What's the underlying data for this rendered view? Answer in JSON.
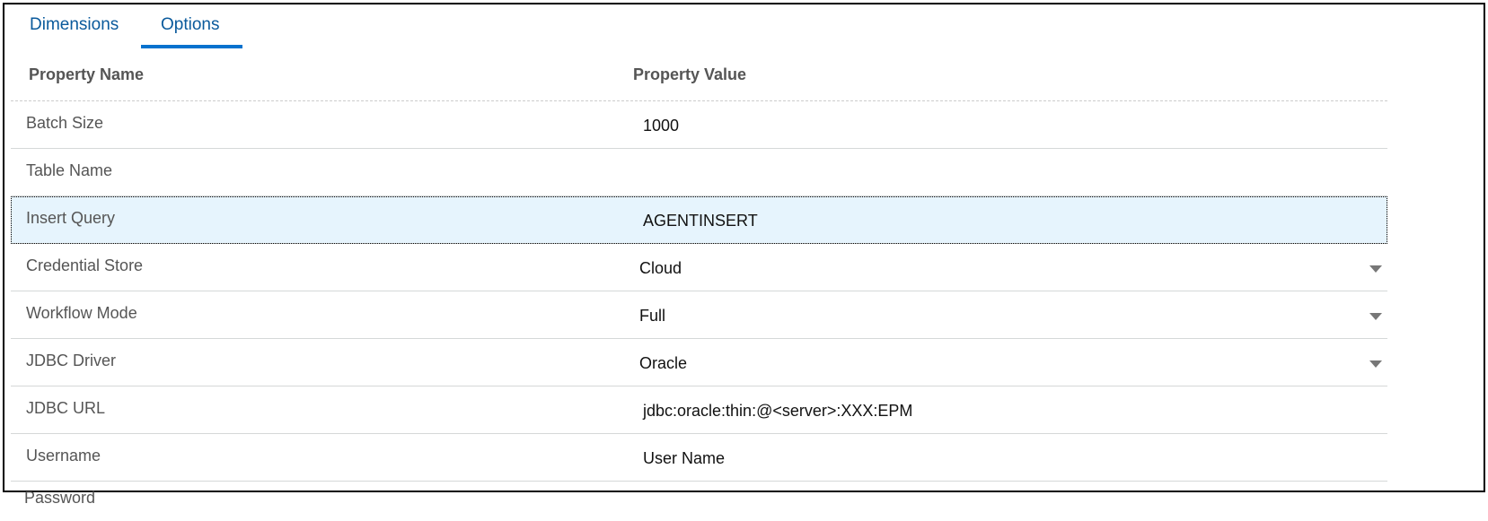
{
  "tabs": [
    {
      "label": "Dimensions",
      "active": false
    },
    {
      "label": "Options",
      "active": true
    }
  ],
  "accent_color": "#0572ce",
  "table": {
    "headers": {
      "name": "Property Name",
      "value": "Property Value"
    },
    "rows": [
      {
        "name": "Batch Size",
        "value": "1000"
      },
      {
        "name": "Table Name",
        "value": ""
      },
      {
        "name": "Insert Query",
        "value": "AGENTINSERT",
        "selected": true
      },
      {
        "name": "Credential Store",
        "value": "Cloud",
        "dropdown": true
      },
      {
        "name": "Workflow Mode",
        "value": "Full",
        "dropdown": true
      },
      {
        "name": "JDBC Driver",
        "value": "Oracle",
        "dropdown": true
      },
      {
        "name": "JDBC URL",
        "value": "jdbc:oracle:thin:@<server>:XXX:EPM"
      },
      {
        "name": "Username",
        "value": "User Name"
      }
    ],
    "next_row_label": "Password"
  }
}
